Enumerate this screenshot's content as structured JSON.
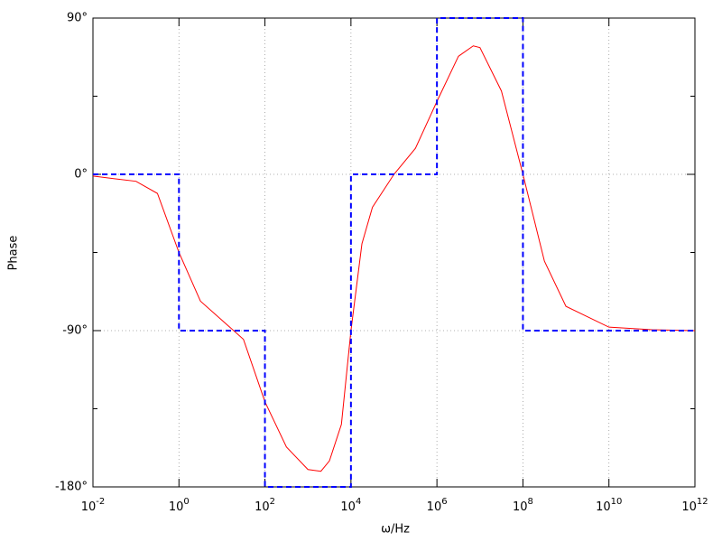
{
  "chart_data": {
    "type": "line",
    "xlabel": "ω/Hz",
    "ylabel": "Phase",
    "xscale": "log",
    "grid": true,
    "xlim": [
      0.01,
      1000000000000
    ],
    "ylim": [
      -180,
      90
    ],
    "xticks": [
      {
        "value": 0.01,
        "label": "10",
        "power": "-2"
      },
      {
        "value": 1,
        "label": "10",
        "power": "0"
      },
      {
        "value": 100,
        "label": "10",
        "power": "2"
      },
      {
        "value": 10000,
        "label": "10",
        "power": "4"
      },
      {
        "value": 1000000,
        "label": "10",
        "power": "6"
      },
      {
        "value": 100000000,
        "label": "10",
        "power": "8"
      },
      {
        "value": 10000000000,
        "label": "10",
        "power": "10"
      },
      {
        "value": 1000000000000,
        "label": "10",
        "power": "12"
      }
    ],
    "yticks": [
      {
        "value": -180,
        "label": "-180°"
      },
      {
        "value": -90,
        "label": "-90°"
      },
      {
        "value": 0,
        "label": "0°"
      },
      {
        "value": 90,
        "label": "90°"
      }
    ],
    "yminor": [
      -135,
      -45,
      45
    ],
    "series": [
      {
        "color": "#ff0000",
        "dashed": false,
        "x": [
          0.01,
          0.1,
          0.316,
          1,
          3.16,
          10,
          31.6,
          100,
          316,
          1000,
          2000,
          3160,
          6000,
          10000,
          18000,
          31600,
          100000,
          316000,
          1000000,
          3160000,
          7000000,
          10000000,
          31600000,
          100000000,
          316000000,
          1000000000,
          10000000000,
          100000000000,
          1000000000000
        ],
        "values": [
          -1,
          -4,
          -11,
          -45,
          -73,
          -84,
          -95,
          -131,
          -157,
          -170,
          -171,
          -165,
          -144,
          -90,
          -40,
          -19,
          0,
          15,
          42,
          68,
          74,
          73,
          48,
          0,
          -50,
          -76,
          -88,
          -89.5,
          -90
        ]
      },
      {
        "color": "#0000ff",
        "dashed": true,
        "x": [
          0.01,
          1,
          1,
          100,
          100,
          10000,
          10000,
          1000000,
          1000000,
          100000000,
          100000000,
          1000000000000
        ],
        "values": [
          0,
          0,
          -90,
          -90,
          -180,
          -180,
          0,
          0,
          90,
          90,
          -90,
          -90
        ]
      }
    ]
  }
}
